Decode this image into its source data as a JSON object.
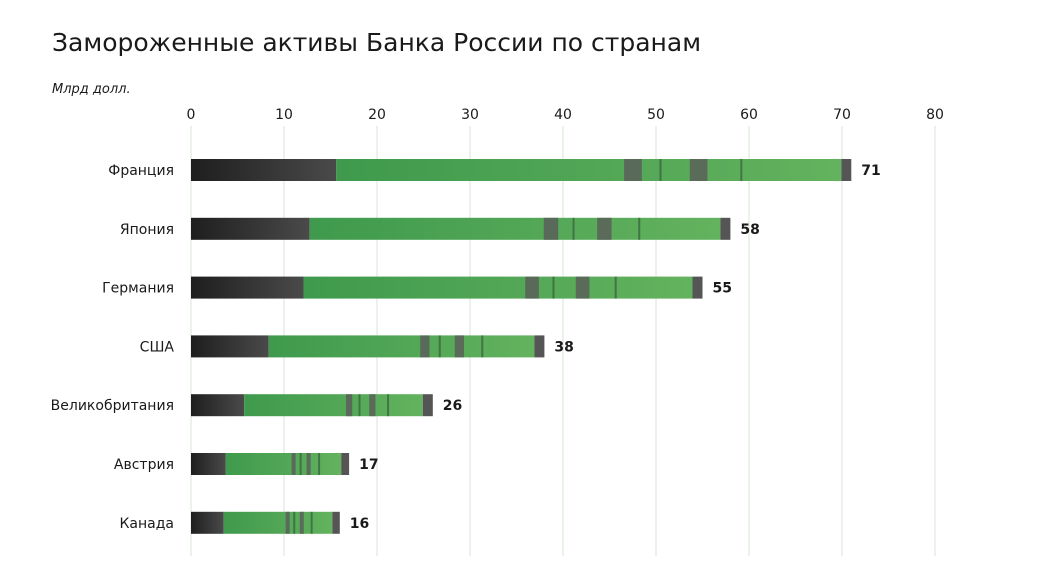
{
  "chart_data": {
    "type": "bar",
    "orientation": "horizontal",
    "title": "Замороженные активы Банка России по странам",
    "unit_label": "Млрд долл.",
    "categories": [
      "Франция",
      "Япония",
      "Германия",
      "США",
      "Великобритания",
      "Австрия",
      "Канада"
    ],
    "values": [
      71,
      58,
      55,
      38,
      26,
      17,
      16
    ],
    "value_labels": [
      "71",
      "58",
      "55",
      "38",
      "26",
      "17",
      "16"
    ],
    "xlim": [
      0,
      80
    ],
    "xticks": [
      0,
      10,
      20,
      30,
      40,
      50,
      60,
      70,
      80
    ],
    "grid": "vertical",
    "colors": {
      "dark_segment": "#2f2f2f",
      "green_segment": "#4fa45a",
      "end_cap": "#555555",
      "grid": "#d7e6d3"
    }
  }
}
